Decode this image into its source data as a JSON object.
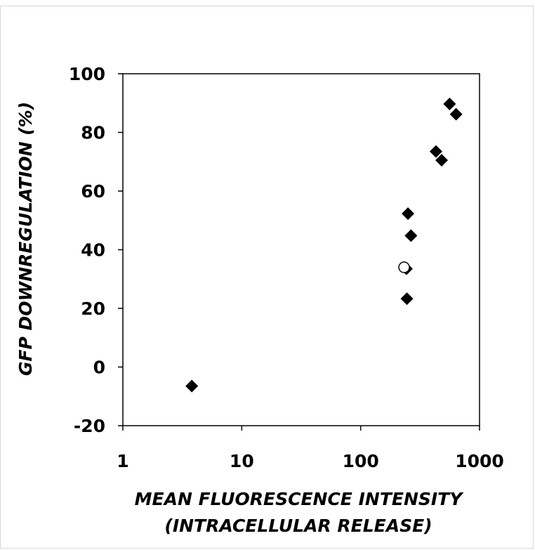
{
  "chart_data": {
    "type": "scatter",
    "x_scale": "log",
    "xlim": [
      1,
      1000
    ],
    "ylim": [
      -20,
      100
    ],
    "x_ticks": [
      1,
      10,
      100,
      1000
    ],
    "x_tick_labels": [
      "1",
      "10",
      "100",
      "1000"
    ],
    "y_ticks": [
      -20,
      0,
      20,
      40,
      60,
      80,
      100
    ],
    "y_tick_labels": [
      "-20",
      "0",
      "20",
      "40",
      "60",
      "80",
      "100"
    ],
    "xlabel_lines": [
      "MEAN FLUORESCENCE INTENSITY",
      "(INTRACELLULAR RELEASE)"
    ],
    "ylabel": "GFP DOWNREGULATION (%)",
    "grid": false,
    "series": [
      {
        "marker": "diamond",
        "color": "#000000",
        "points": [
          {
            "x": 3.8,
            "y": -6.5
          },
          {
            "x": 245,
            "y": 23.3
          },
          {
            "x": 243,
            "y": 33.5
          },
          {
            "x": 250,
            "y": 52.3
          },
          {
            "x": 265,
            "y": 44.8
          },
          {
            "x": 430,
            "y": 73.5
          },
          {
            "x": 480,
            "y": 70.5
          },
          {
            "x": 560,
            "y": 89.7
          },
          {
            "x": 635,
            "y": 86.2
          }
        ]
      },
      {
        "marker": "open-circle",
        "color": "#000000",
        "points": [
          {
            "x": 232,
            "y": 34.0
          }
        ]
      }
    ]
  }
}
